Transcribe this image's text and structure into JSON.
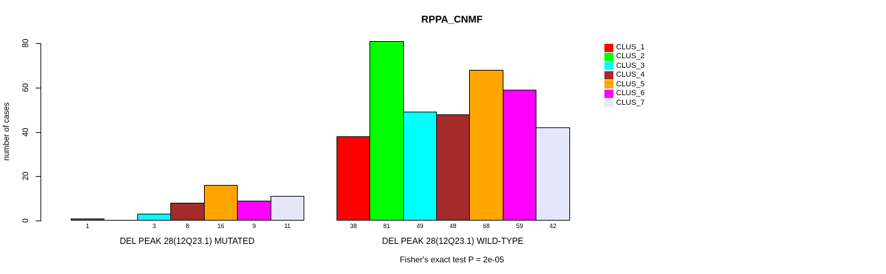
{
  "chart_data": {
    "type": "bar",
    "title": "RPPA_CNMF",
    "xlabel": "",
    "ylabel": "number of cases",
    "ylim": [
      0,
      80
    ],
    "yticks": [
      0,
      20,
      40,
      60,
      80
    ],
    "grid": false,
    "legend_position": "top-right-inside",
    "categories": [
      "DEL PEAK 28(12Q23.1) MUTATED",
      "DEL PEAK 28(12Q23.1) WILD-TYPE"
    ],
    "series": [
      {
        "name": "CLUS_1",
        "color": "#FF0000",
        "values": [
          1,
          38
        ]
      },
      {
        "name": "CLUS_2",
        "color": "#00FF00",
        "values": [
          0,
          81
        ]
      },
      {
        "name": "CLUS_3",
        "color": "#00FFFF",
        "values": [
          3,
          49
        ]
      },
      {
        "name": "CLUS_4",
        "color": "#A52A2A",
        "values": [
          8,
          48
        ]
      },
      {
        "name": "CLUS_5",
        "color": "#FFA500",
        "values": [
          16,
          68
        ]
      },
      {
        "name": "CLUS_6",
        "color": "#FF00FF",
        "values": [
          9,
          59
        ]
      },
      {
        "name": "CLUS_7",
        "color": "#E6E6FA",
        "values": [
          11,
          42
        ]
      }
    ],
    "value_labels": [
      [
        "1",
        "",
        "3",
        "8",
        "16",
        "9",
        "11"
      ],
      [
        "38",
        "81",
        "49",
        "48",
        "68",
        "59",
        "42"
      ]
    ],
    "annotation": "Fisher's exact test P = 2e-05",
    "colors": {
      "axis": "#000000",
      "background": "#FFFFFF",
      "text": "#000000"
    }
  }
}
